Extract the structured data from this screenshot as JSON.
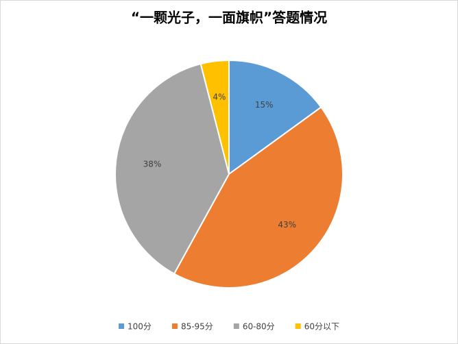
{
  "chart_data": {
    "type": "pie",
    "title": "“一颗光子，一面旗帜”答题情况",
    "categories": [
      "100分",
      "85-95分",
      "60-80分",
      "60分以下"
    ],
    "values": [
      15,
      43,
      38,
      4
    ],
    "value_labels": [
      "15%",
      "43%",
      "38%",
      "4%"
    ],
    "colors": [
      "#5b9bd5",
      "#ed7d31",
      "#a5a5a5",
      "#ffc000"
    ],
    "legend": "bottom"
  }
}
